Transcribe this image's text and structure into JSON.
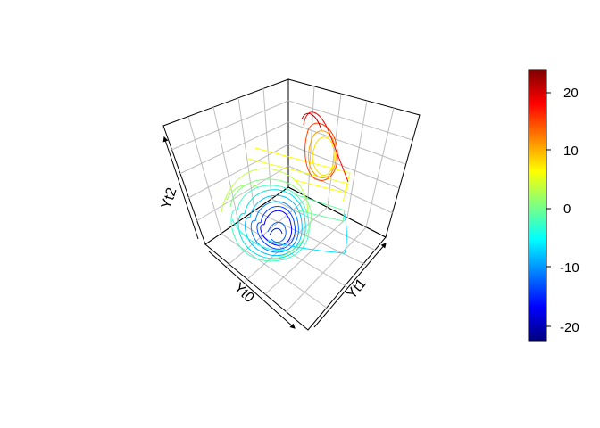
{
  "chart_data": {
    "type": "line",
    "title": "",
    "axes": {
      "x": {
        "label": "Yt0"
      },
      "y": {
        "label": "Yt1"
      },
      "z": {
        "label": "Yt2"
      }
    },
    "grid": true,
    "box": "back panels with light gray grid",
    "colorbar": {
      "placement": "right",
      "range": [
        -23,
        23
      ],
      "ticks": [
        -20,
        -10,
        0,
        10,
        20
      ],
      "tick_labels": [
        "-20",
        "-10",
        "0",
        "10",
        "20"
      ],
      "colormap": "jet",
      "colors": [
        "#00007F",
        "#0000FF",
        "#007FFF",
        "#00FFFF",
        "#7FFF7F",
        "#FFFF00",
        "#FF7F00",
        "#FF0000",
        "#7F0000"
      ]
    },
    "series": [
      {
        "x": [
          -8,
          -4,
          4,
          8,
          4,
          -4,
          -8
        ],
        "y": [
          -8,
          -8,
          -8,
          0,
          8,
          8,
          0
        ],
        "z": [
          -18,
          -13,
          -15,
          -20,
          -22,
          -19,
          -16
        ]
      },
      {
        "x": [
          8,
          14,
          16,
          12,
          8,
          6,
          8
        ],
        "y": [
          10,
          14,
          16,
          8,
          8,
          12,
          10
        ],
        "z": [
          16,
          22,
          18,
          12,
          14,
          20,
          16
        ]
      },
      {
        "x": [
          -14,
          -2,
          10,
          14,
          2,
          -10,
          -14
        ],
        "y": [
          -4,
          -14,
          -4,
          6,
          14,
          6,
          -4
        ],
        "z": [
          2,
          -6,
          0,
          8,
          14,
          10,
          2
        ]
      }
    ]
  }
}
